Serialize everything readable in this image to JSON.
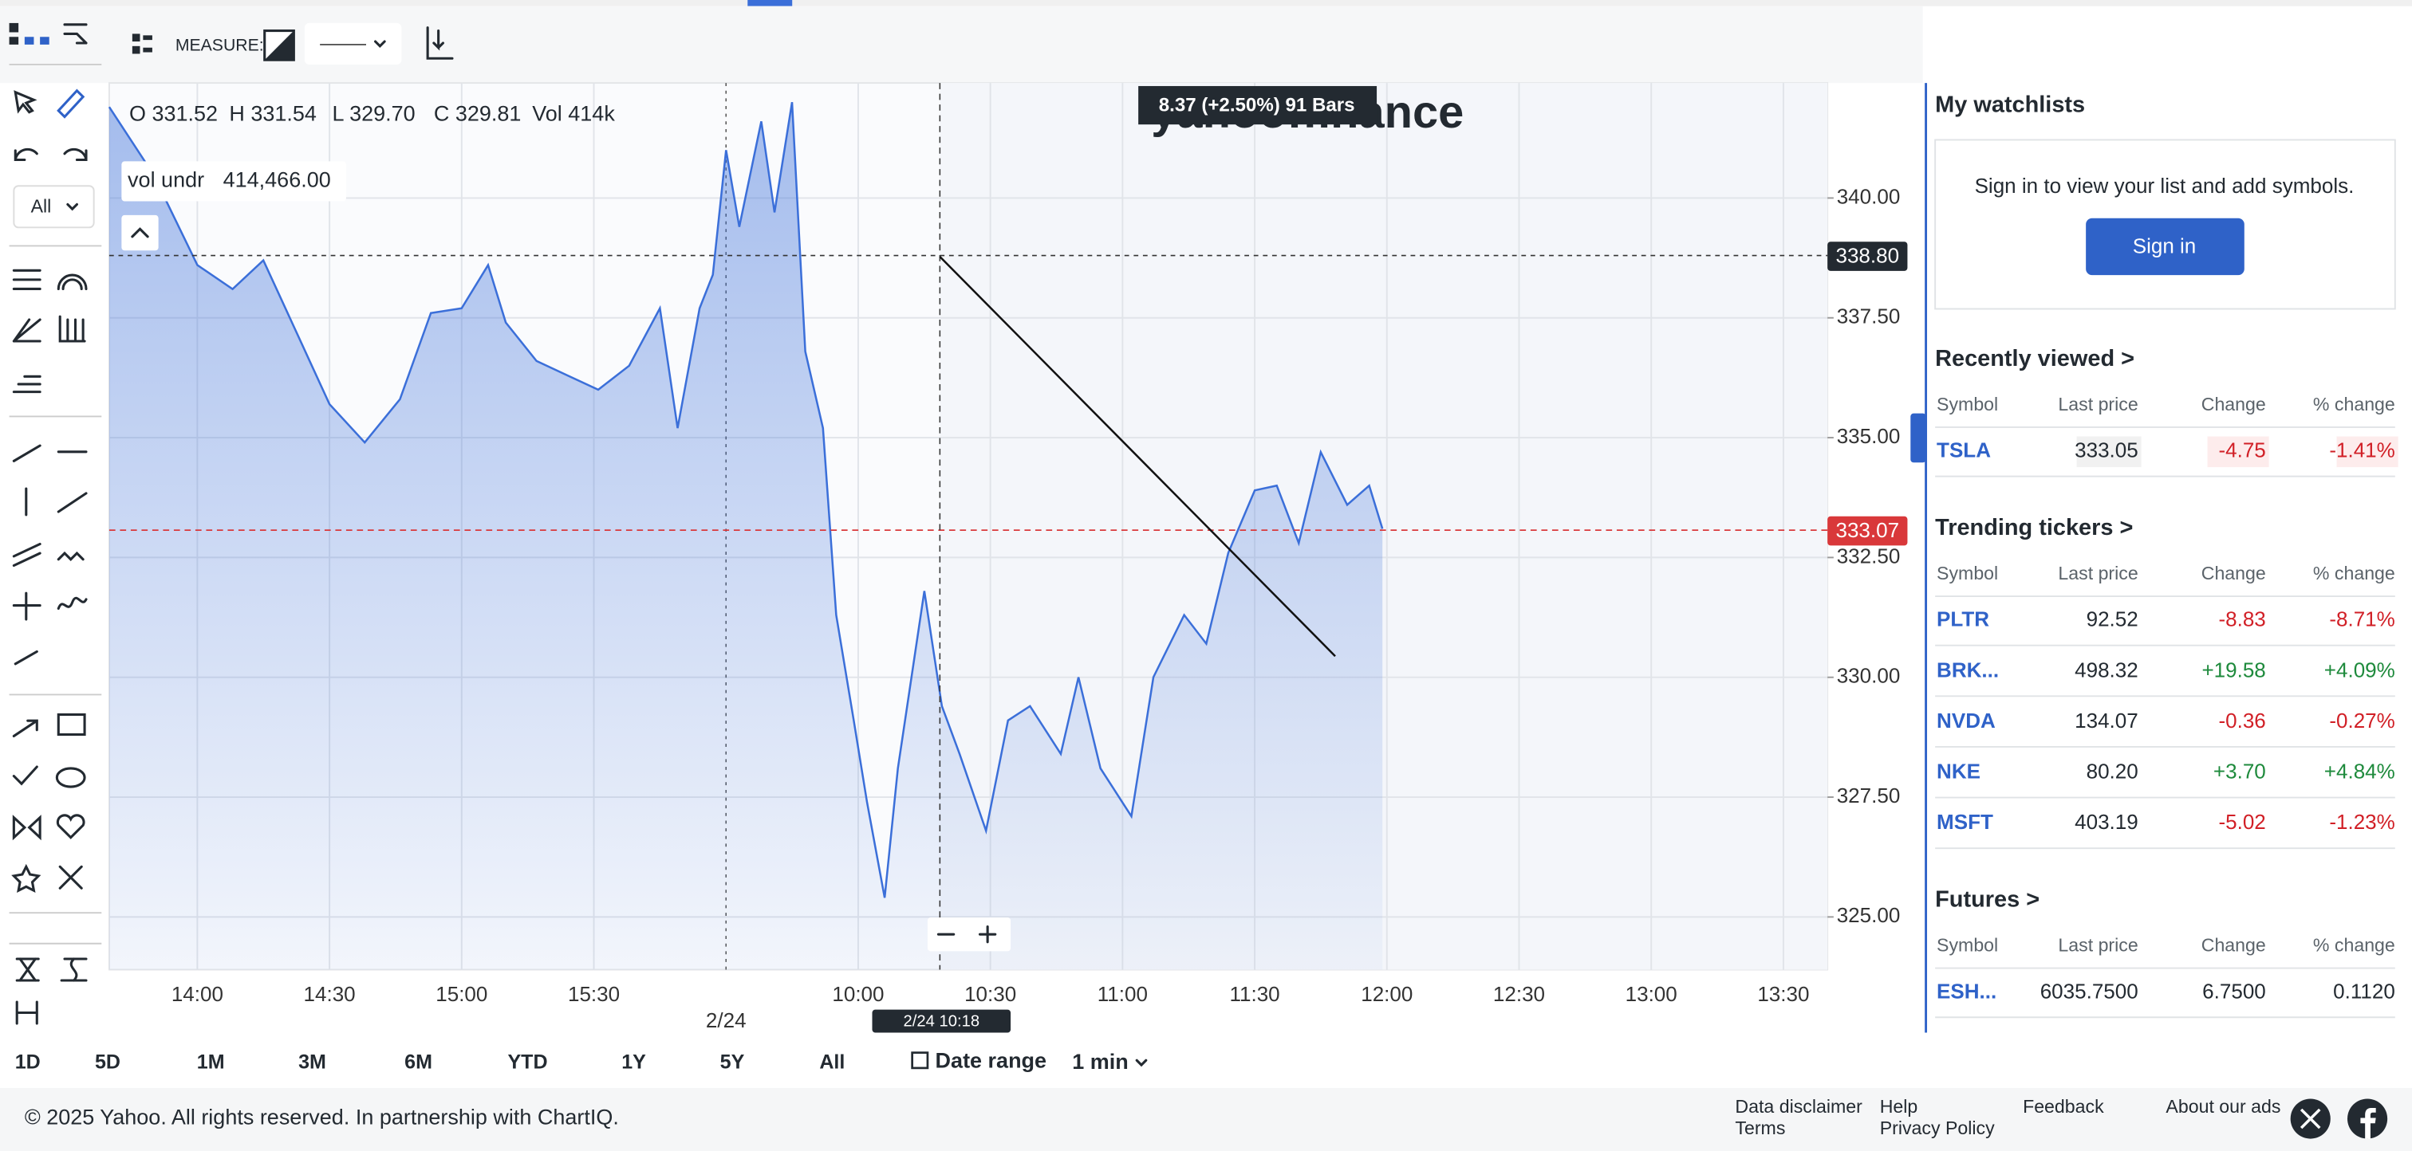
{
  "toolbar": {
    "measure": "MEASURE:",
    "drawing_filter": "All"
  },
  "chart_data": {
    "type": "area",
    "watermark": "yahoo!finance",
    "ohlc": {
      "open": "O 331.52",
      "high": "H 331.54",
      "low": "L 329.70",
      "close": "C 329.81",
      "volume": "Vol 414k"
    },
    "study": {
      "name": "vol undr",
      "value": "414,466.00"
    },
    "measurement": "8.37 (+2.50%) 91 Bars",
    "crosshair": {
      "price": {
        "value": 338.8,
        "label": "338.80"
      },
      "time": "2/24 10:18"
    },
    "last_price": {
      "value": 333.07,
      "label": "333.07"
    },
    "series": [
      {
        "name": "TSLA",
        "color": "#3b6fd9",
        "x": [
          10,
          20,
          30,
          38,
          45,
          52,
          60,
          68,
          76,
          83,
          90,
          96,
          100,
          107,
          114,
          121,
          128,
          135,
          139,
          144,
          147,
          150,
          153,
          158,
          161,
          165,
          168,
          172,
          175,
          179,
          182,
          186,
          189,
          195,
          199,
          203,
          209,
          214,
          219,
          226,
          230,
          235,
          242,
          247,
          254,
          259,
          264,
          270,
          275,
          280,
          285,
          291,
          296,
          299
        ],
        "values": [
          341.9,
          340.5,
          338.6,
          338.1,
          338.7,
          337.3,
          335.7,
          334.9,
          335.8,
          337.6,
          337.7,
          338.6,
          337.4,
          336.6,
          336.3,
          336.0,
          336.5,
          337.7,
          335.2,
          337.7,
          338.4,
          341.0,
          339.4,
          341.6,
          339.7,
          342.0,
          336.8,
          335.2,
          331.3,
          329.1,
          327.4,
          325.4,
          328.1,
          331.8,
          329.4,
          328.4,
          326.8,
          329.1,
          329.4,
          328.4,
          330.0,
          328.1,
          327.1,
          330.0,
          331.3,
          330.7,
          332.6,
          333.9,
          334.0,
          332.8,
          334.7,
          333.6,
          334.0,
          333.1
        ]
      }
    ],
    "xlim": [
      10,
      400
    ],
    "xticks": [
      {
        "value": 30,
        "label": "14:00"
      },
      {
        "value": 60,
        "label": "14:30"
      },
      {
        "value": 90,
        "label": "15:00"
      },
      {
        "value": 120,
        "label": "15:30"
      },
      {
        "value": 150,
        "label": "2/24"
      },
      {
        "value": 180,
        "label": "10:00"
      },
      {
        "value": 210,
        "label": "10:30"
      },
      {
        "value": 240,
        "label": "11:00"
      },
      {
        "value": 270,
        "label": "11:30"
      },
      {
        "value": 300,
        "label": "12:00"
      },
      {
        "value": 330,
        "label": "12:30"
      },
      {
        "value": 360,
        "label": "13:00"
      },
      {
        "value": 390,
        "label": "13:30"
      }
    ],
    "ylim": [
      323.9,
      342.4
    ],
    "yticks": [
      {
        "value": 325,
        "label": "325.00"
      },
      {
        "value": 327.5,
        "label": "327.50"
      },
      {
        "value": 330,
        "label": "330.00"
      },
      {
        "value": 332.5,
        "label": "332.50"
      },
      {
        "value": 335,
        "label": "335.00"
      },
      {
        "value": 337.5,
        "label": "337.50"
      },
      {
        "value": 340,
        "label": "340.00"
      }
    ],
    "grid": true
  },
  "range_buttons": [
    "1D",
    "5D",
    "1M",
    "3M",
    "6M",
    "YTD",
    "1Y",
    "5Y",
    "All"
  ],
  "date_range": "Date range",
  "interval": "1 min",
  "sidebar": {
    "watchlists": {
      "title": "My watchlists",
      "message": "Sign in to view your list and add symbols.",
      "button": "Sign in"
    },
    "sections": [
      {
        "title": "Recently viewed >",
        "columns": [
          "Symbol",
          "Last price",
          "Change",
          "% change"
        ],
        "rows": [
          [
            "TSLA",
            "333.05",
            "-4.75",
            "-1.41%"
          ]
        ]
      },
      {
        "title": "Trending tickers >",
        "columns": [
          "Symbol",
          "Last price",
          "Change",
          "% change"
        ],
        "rows": [
          [
            "PLTR",
            "92.52",
            "-8.83",
            "-8.71%"
          ],
          [
            "BRK...",
            "498.32",
            "+19.58",
            "+4.09%"
          ],
          [
            "NVDA",
            "134.07",
            "-0.36",
            "-0.27%"
          ],
          [
            "NKE",
            "80.20",
            "+3.70",
            "+4.84%"
          ],
          [
            "MSFT",
            "403.19",
            "-5.02",
            "-1.23%"
          ]
        ]
      },
      {
        "title": "Futures >",
        "columns": [
          "Symbol",
          "Last price",
          "Change",
          "% change"
        ],
        "rows": [
          [
            "ESH...",
            "6035.7500",
            "6.7500",
            "0.1120"
          ]
        ]
      }
    ]
  },
  "footer": {
    "copyright": "© 2025 Yahoo. All rights reserved. In partnership with ChartIQ.",
    "links": [
      "Data disclaimer",
      "Terms",
      "Help",
      "Privacy Policy",
      "Feedback",
      "About our ads"
    ]
  }
}
